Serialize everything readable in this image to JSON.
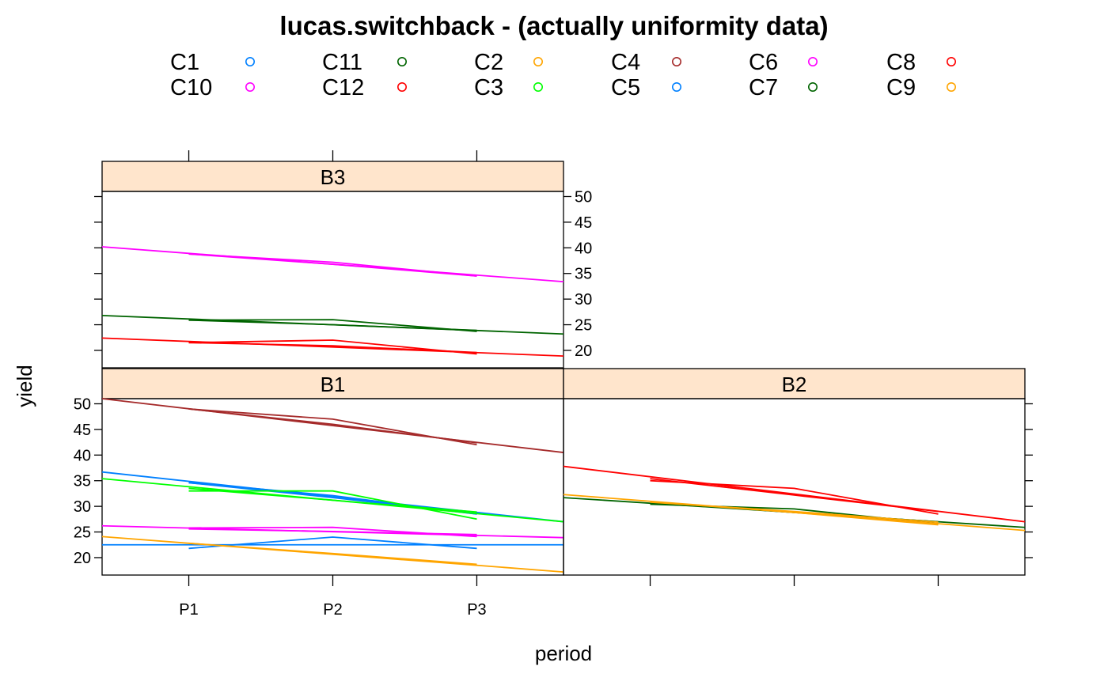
{
  "chart_data": {
    "type": "line",
    "title": "lucas.switchback - (actually uniformity data)",
    "xlabel": "period",
    "ylabel": "yield",
    "x_categories": [
      "P1",
      "P2",
      "P3"
    ],
    "ylim": [
      16.6,
      51
    ],
    "y_ticks": [
      20,
      25,
      30,
      35,
      40,
      45,
      50
    ],
    "legend": {
      "placement": "top",
      "entries": [
        {
          "name": "C1",
          "color": "#0080ff"
        },
        {
          "name": "C10",
          "color": "#ff00ff"
        },
        {
          "name": "C11",
          "color": "#006400"
        },
        {
          "name": "C12",
          "color": "#ff0000"
        },
        {
          "name": "C2",
          "color": "#ffa500"
        },
        {
          "name": "C3",
          "color": "#00ff00"
        },
        {
          "name": "C4",
          "color": "#a52a2a"
        },
        {
          "name": "C5",
          "color": "#0080ff"
        },
        {
          "name": "C6",
          "color": "#ff00ff"
        },
        {
          "name": "C7",
          "color": "#006400"
        },
        {
          "name": "C8",
          "color": "#ff0000"
        },
        {
          "name": "C9",
          "color": "#ffa500"
        }
      ]
    },
    "panels": [
      {
        "strip": "B3",
        "series": [
          {
            "color": "#ff00ff",
            "values": [
              38.8,
              37.2,
              34.5
            ],
            "trend": [
              40.2,
              33.4
            ]
          },
          {
            "color": "#ff00ff",
            "values": [
              38.8,
              36.8,
              34.5
            ],
            "trend": null
          },
          {
            "color": "#006400",
            "values": [
              25.9,
              26.0,
              23.7
            ],
            "trend": [
              26.8,
              23.2
            ]
          },
          {
            "color": "#006400",
            "values": [
              25.9,
              25.0,
              23.9
            ],
            "trend": null
          },
          {
            "color": "#ff0000",
            "values": [
              21.5,
              22.0,
              19.3
            ],
            "trend": [
              22.4,
              18.9
            ]
          },
          {
            "color": "#ff0000",
            "values": [
              21.5,
              20.9,
              19.6
            ],
            "trend": null
          }
        ]
      },
      {
        "strip": "B1",
        "series": [
          {
            "color": "#a52a2a",
            "values": [
              49.0,
              47.0,
              42.0
            ],
            "trend": [
              51.0,
              40.5
            ]
          },
          {
            "color": "#a52a2a",
            "values": [
              49.0,
              46.0,
              42.4
            ],
            "trend": null
          },
          {
            "color": "#0080ff",
            "values": [
              34.6,
              32.1,
              28.5
            ],
            "trend": [
              36.7,
              27.0
            ]
          },
          {
            "color": "#0080ff",
            "values": [
              34.6,
              31.7,
              28.5
            ],
            "trend": null
          },
          {
            "color": "#00ff00",
            "values": [
              33.0,
              33.0,
              27.5
            ],
            "trend": [
              35.4,
              27.0
            ]
          },
          {
            "color": "#00ff00",
            "values": [
              33.5,
              31.2,
              28.9
            ],
            "trend": null
          },
          {
            "color": "#ff00ff",
            "values": [
              25.8,
              25.9,
              24.1
            ],
            "trend": [
              26.2,
              23.9
            ]
          },
          {
            "color": "#ff00ff",
            "values": [
              25.6,
              25.1,
              24.5
            ],
            "trend": null
          },
          {
            "color": "#0080ff",
            "values": [
              21.8,
              24.0,
              21.8
            ],
            "trend": [
              22.5,
              22.5
            ]
          },
          {
            "color": "#ffa500",
            "values": [
              22.8,
              20.8,
              18.7
            ],
            "trend": [
              24.1,
              17.2
            ]
          }
        ]
      },
      {
        "strip": "B2",
        "series": [
          {
            "color": "#ff0000",
            "values": [
              35.0,
              33.5,
              28.5
            ],
            "trend": [
              37.8,
              27.0
            ]
          },
          {
            "color": "#ff0000",
            "values": [
              35.4,
              32.2,
              29.0
            ],
            "trend": null
          },
          {
            "color": "#006400",
            "values": [
              30.4,
              29.5,
              26.6
            ],
            "trend": [
              31.7,
              25.9
            ]
          },
          {
            "color": "#006400",
            "values": [
              30.8,
              28.8,
              27.0
            ],
            "trend": null
          },
          {
            "color": "#ffa500",
            "values": [
              30.9,
              28.8,
              26.4
            ],
            "trend": [
              32.3,
              25.3
            ]
          },
          {
            "color": "#ffa500",
            "values": [
              30.8,
              29.0,
              26.9
            ],
            "trend": null
          }
        ]
      }
    ]
  }
}
